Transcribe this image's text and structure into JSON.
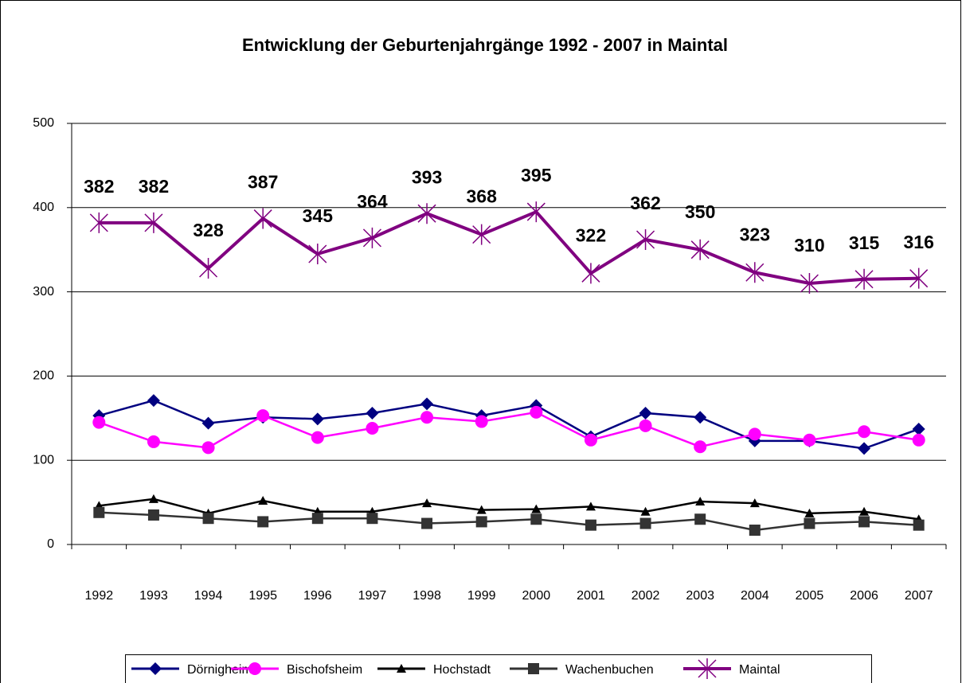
{
  "chart_data": {
    "type": "line",
    "title": "Entwicklung der Geburtenjahrgänge 1992 - 2007 in Maintal",
    "categories": [
      "1992",
      "1993",
      "1994",
      "1995",
      "1996",
      "1997",
      "1998",
      "1999",
      "2000",
      "2001",
      "2002",
      "2003",
      "2004",
      "2005",
      "2006",
      "2007"
    ],
    "ylim": [
      0,
      500
    ],
    "yticks": [
      0,
      100,
      200,
      300,
      400,
      500
    ],
    "grid": true,
    "series": [
      {
        "name": "Dörnigheim",
        "color": "#000080",
        "marker": "diamond",
        "values": [
          153,
          171,
          144,
          151,
          149,
          156,
          167,
          153,
          165,
          128,
          156,
          151,
          123,
          123,
          114,
          137
        ]
      },
      {
        "name": "Bischofsheim",
        "color": "#ff00ff",
        "marker": "circle",
        "values": [
          145,
          122,
          115,
          153,
          127,
          138,
          151,
          146,
          157,
          124,
          141,
          116,
          131,
          124,
          134,
          124
        ]
      },
      {
        "name": "Hochstadt",
        "color": "#000000",
        "marker": "triangle",
        "values": [
          46,
          54,
          37,
          52,
          39,
          39,
          49,
          41,
          42,
          45,
          39,
          51,
          49,
          37,
          39,
          30
        ]
      },
      {
        "name": "Wachenbuchen",
        "color": "#333333",
        "marker": "square",
        "values": [
          38,
          35,
          31,
          27,
          31,
          31,
          25,
          27,
          30,
          23,
          25,
          30,
          17,
          25,
          27,
          23
        ]
      },
      {
        "name": "Maintal",
        "color": "#800080",
        "marker": "star",
        "labels": true,
        "values": [
          382,
          382,
          328,
          387,
          345,
          364,
          393,
          368,
          395,
          322,
          362,
          350,
          323,
          310,
          315,
          316
        ]
      }
    ]
  }
}
